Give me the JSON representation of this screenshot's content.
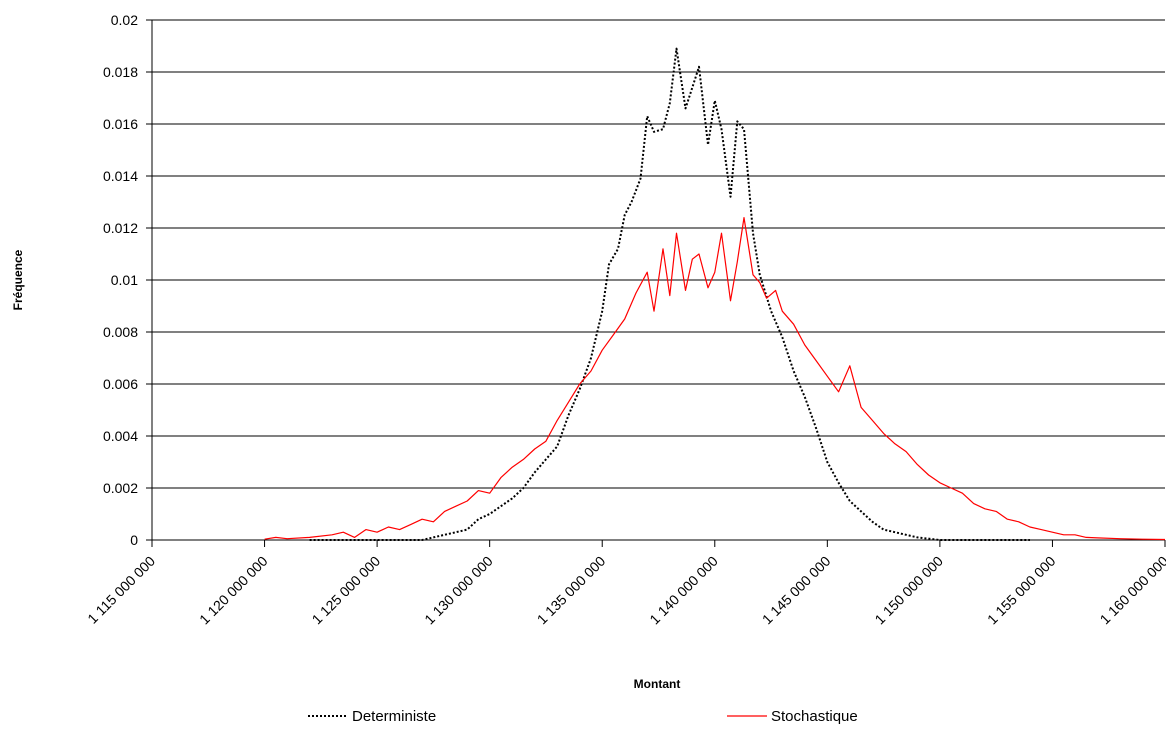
{
  "chart_data": {
    "type": "line",
    "title": "",
    "xlabel": "Montant",
    "ylabel": "Fréquence",
    "xlim": [
      1115000000,
      1160000000
    ],
    "ylim": [
      0,
      0.02
    ],
    "x_ticks": [
      1115000000,
      1120000000,
      1125000000,
      1130000000,
      1135000000,
      1140000000,
      1145000000,
      1150000000,
      1155000000,
      1160000000
    ],
    "x_tick_labels": [
      "1 115 000 000",
      "1 120 000 000",
      "1 125 000 000",
      "1 130 000 000",
      "1 135 000 000",
      "1 140 000 000",
      "1 145 000 000",
      "1 150 000 000",
      "1 155 000 000",
      "1 160 000 000"
    ],
    "y_ticks": [
      0,
      0.002,
      0.004,
      0.006,
      0.008,
      0.01,
      0.012,
      0.014,
      0.016,
      0.018,
      0.02
    ],
    "y_tick_labels": [
      "0",
      "0.002",
      "0.004",
      "0.006",
      "0.008",
      "0.01",
      "0.012",
      "0.014",
      "0.016",
      "0.018",
      "0.02"
    ],
    "grid": "horizontal",
    "legend_position": "bottom",
    "series": [
      {
        "name": "Deterministe",
        "color": "#000000",
        "style": "dotted",
        "points": [
          [
            1122000000,
            0
          ],
          [
            1127000000,
            0
          ],
          [
            1128000000,
            0.0002
          ],
          [
            1129000000,
            0.0004
          ],
          [
            1129500000,
            0.0008
          ],
          [
            1130000000,
            0.001
          ],
          [
            1130500000,
            0.0013
          ],
          [
            1131000000,
            0.0016
          ],
          [
            1131500000,
            0.002
          ],
          [
            1132000000,
            0.0026
          ],
          [
            1132500000,
            0.0031
          ],
          [
            1133000000,
            0.0036
          ],
          [
            1133500000,
            0.0048
          ],
          [
            1134000000,
            0.0058
          ],
          [
            1134500000,
            0.007
          ],
          [
            1135000000,
            0.0088
          ],
          [
            1135300000,
            0.0106
          ],
          [
            1135700000,
            0.0112
          ],
          [
            1136000000,
            0.0125
          ],
          [
            1136300000,
            0.013
          ],
          [
            1136700000,
            0.0139
          ],
          [
            1137000000,
            0.0163
          ],
          [
            1137300000,
            0.0157
          ],
          [
            1137700000,
            0.0158
          ],
          [
            1138000000,
            0.0168
          ],
          [
            1138300000,
            0.0189
          ],
          [
            1138700000,
            0.0166
          ],
          [
            1139000000,
            0.0174
          ],
          [
            1139300000,
            0.0182
          ],
          [
            1139700000,
            0.0152
          ],
          [
            1140000000,
            0.0169
          ],
          [
            1140300000,
            0.0158
          ],
          [
            1140700000,
            0.0132
          ],
          [
            1141000000,
            0.0161
          ],
          [
            1141300000,
            0.0158
          ],
          [
            1141700000,
            0.0118
          ],
          [
            1142000000,
            0.0102
          ],
          [
            1142500000,
            0.0088
          ],
          [
            1143000000,
            0.0078
          ],
          [
            1143500000,
            0.0065
          ],
          [
            1144000000,
            0.0055
          ],
          [
            1144500000,
            0.0043
          ],
          [
            1145000000,
            0.003
          ],
          [
            1145500000,
            0.0022
          ],
          [
            1146000000,
            0.0015
          ],
          [
            1146500000,
            0.0011
          ],
          [
            1147000000,
            0.0007
          ],
          [
            1147500000,
            0.0004
          ],
          [
            1148000000,
            0.0003
          ],
          [
            1148500000,
            0.0002
          ],
          [
            1149000000,
            0.0001
          ],
          [
            1150000000,
            0
          ],
          [
            1154000000,
            0
          ]
        ]
      },
      {
        "name": "Stochastique",
        "color": "#ff0000",
        "style": "solid",
        "points": [
          [
            1120000000,
            3e-05
          ],
          [
            1120500000,
            0.0001
          ],
          [
            1121000000,
            5e-05
          ],
          [
            1122000000,
            0.0001
          ],
          [
            1123000000,
            0.0002
          ],
          [
            1123500000,
            0.0003
          ],
          [
            1124000000,
            0.0001
          ],
          [
            1124500000,
            0.0004
          ],
          [
            1125000000,
            0.0003
          ],
          [
            1125500000,
            0.0005
          ],
          [
            1126000000,
            0.0004
          ],
          [
            1126500000,
            0.0006
          ],
          [
            1127000000,
            0.0008
          ],
          [
            1127500000,
            0.0007
          ],
          [
            1128000000,
            0.0011
          ],
          [
            1128500000,
            0.0013
          ],
          [
            1129000000,
            0.0015
          ],
          [
            1129500000,
            0.0019
          ],
          [
            1130000000,
            0.0018
          ],
          [
            1130500000,
            0.0024
          ],
          [
            1131000000,
            0.0028
          ],
          [
            1131500000,
            0.0031
          ],
          [
            1132000000,
            0.0035
          ],
          [
            1132500000,
            0.0038
          ],
          [
            1133000000,
            0.0046
          ],
          [
            1133500000,
            0.0053
          ],
          [
            1134000000,
            0.006
          ],
          [
            1134500000,
            0.0065
          ],
          [
            1135000000,
            0.0073
          ],
          [
            1135500000,
            0.0079
          ],
          [
            1136000000,
            0.0085
          ],
          [
            1136500000,
            0.0095
          ],
          [
            1137000000,
            0.0103
          ],
          [
            1137300000,
            0.0088
          ],
          [
            1137700000,
            0.0112
          ],
          [
            1138000000,
            0.0094
          ],
          [
            1138300000,
            0.0118
          ],
          [
            1138700000,
            0.0096
          ],
          [
            1139000000,
            0.0108
          ],
          [
            1139300000,
            0.011
          ],
          [
            1139700000,
            0.0097
          ],
          [
            1140000000,
            0.0103
          ],
          [
            1140300000,
            0.0118
          ],
          [
            1140700000,
            0.0092
          ],
          [
            1141000000,
            0.0107
          ],
          [
            1141300000,
            0.0124
          ],
          [
            1141700000,
            0.0102
          ],
          [
            1142000000,
            0.0099
          ],
          [
            1142300000,
            0.0093
          ],
          [
            1142700000,
            0.0096
          ],
          [
            1143000000,
            0.0088
          ],
          [
            1143500000,
            0.0083
          ],
          [
            1144000000,
            0.0075
          ],
          [
            1144500000,
            0.0069
          ],
          [
            1145000000,
            0.0063
          ],
          [
            1145500000,
            0.0057
          ],
          [
            1146000000,
            0.0067
          ],
          [
            1146500000,
            0.0051
          ],
          [
            1147000000,
            0.0046
          ],
          [
            1147500000,
            0.0041
          ],
          [
            1148000000,
            0.0037
          ],
          [
            1148500000,
            0.0034
          ],
          [
            1149000000,
            0.0029
          ],
          [
            1149500000,
            0.0025
          ],
          [
            1150000000,
            0.0022
          ],
          [
            1150500000,
            0.002
          ],
          [
            1151000000,
            0.0018
          ],
          [
            1151500000,
            0.0014
          ],
          [
            1152000000,
            0.0012
          ],
          [
            1152500000,
            0.0011
          ],
          [
            1153000000,
            0.0008
          ],
          [
            1153500000,
            0.0007
          ],
          [
            1154000000,
            0.0005
          ],
          [
            1154500000,
            0.0004
          ],
          [
            1155000000,
            0.0003
          ],
          [
            1155500000,
            0.0002
          ],
          [
            1156000000,
            0.0002
          ],
          [
            1156500000,
            0.0001
          ],
          [
            1157000000,
            8e-05
          ],
          [
            1158000000,
            5e-05
          ],
          [
            1159000000,
            3e-05
          ],
          [
            1160000000,
            2e-05
          ]
        ]
      }
    ]
  }
}
